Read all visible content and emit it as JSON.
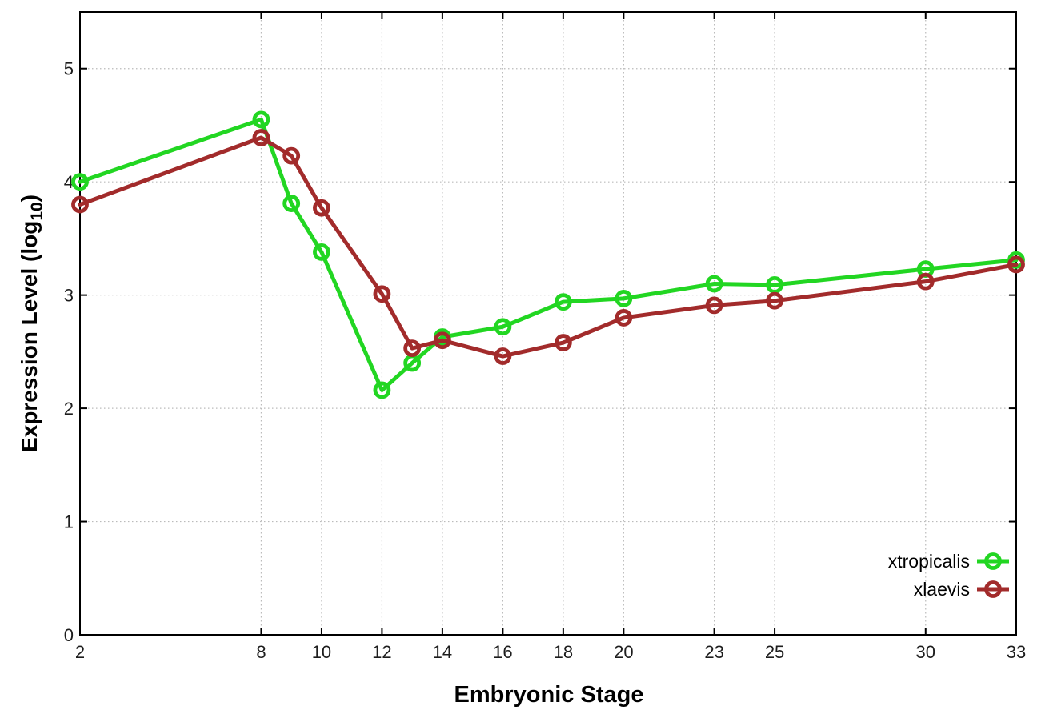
{
  "chart_data": {
    "type": "line",
    "title": "",
    "xlabel": "Embryonic Stage",
    "ylabel": "Expression Level (log10)",
    "ylabel_parts": {
      "main": "Expression Level (log",
      "sub": "10",
      "end": ")"
    },
    "x": [
      2,
      8,
      9,
      10,
      12,
      13,
      14,
      16,
      18,
      20,
      23,
      25,
      30,
      33
    ],
    "x_ticks": [
      2,
      8,
      10,
      12,
      14,
      16,
      18,
      20,
      23,
      25,
      30,
      33
    ],
    "y_ticks": [
      0,
      1,
      2,
      3,
      4,
      5
    ],
    "xlim": [
      2,
      33
    ],
    "ylim": [
      0,
      5.5
    ],
    "grid": true,
    "legend_position": "bottom-right",
    "series": [
      {
        "name": "xtropicalis",
        "color": "#22d622",
        "values": [
          4.0,
          4.55,
          3.81,
          3.38,
          2.16,
          2.4,
          2.63,
          2.72,
          2.94,
          2.97,
          3.1,
          3.09,
          3.23,
          3.31
        ]
      },
      {
        "name": "xlaevis",
        "color": "#a22b2b",
        "values": [
          3.8,
          4.39,
          4.23,
          3.77,
          3.01,
          2.53,
          2.6,
          2.46,
          2.58,
          2.8,
          2.91,
          2.95,
          3.12,
          3.27
        ]
      }
    ],
    "style_colors": {
      "grid": "#bbbbbb",
      "axis": "#000000",
      "tick_text": "#1d1d1d"
    }
  }
}
